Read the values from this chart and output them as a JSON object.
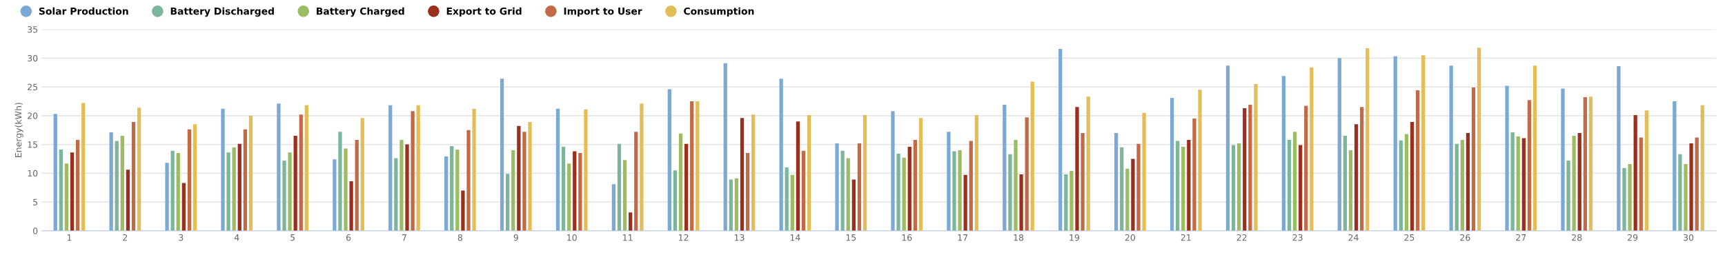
{
  "chart_data": {
    "type": "bar",
    "ylabel": "Energy(kWh)",
    "categories": [
      "1",
      "2",
      "3",
      "4",
      "5",
      "6",
      "7",
      "8",
      "9",
      "10",
      "11",
      "12",
      "13",
      "14",
      "15",
      "16",
      "17",
      "18",
      "19",
      "20",
      "21",
      "22",
      "23",
      "24",
      "25",
      "26",
      "27",
      "28",
      "29",
      "30"
    ],
    "series": [
      {
        "name": "Solar Production",
        "color": "#7aa9d6",
        "values": [
          20.3,
          17.1,
          11.8,
          21.2,
          22.1,
          12.4,
          21.8,
          12.9,
          26.4,
          21.2,
          8.1,
          24.6,
          29.1,
          26.4,
          15.2,
          20.8,
          17.2,
          21.9,
          31.6,
          17.0,
          23.1,
          28.7,
          26.9,
          30.0,
          30.3,
          28.7,
          25.2,
          24.7,
          28.6,
          22.5
        ]
      },
      {
        "name": "Battery Discharged",
        "color": "#7bb59b",
        "values": [
          14.1,
          15.6,
          13.9,
          13.6,
          12.2,
          17.2,
          12.6,
          14.7,
          9.9,
          14.6,
          15.1,
          10.5,
          8.9,
          11.0,
          13.9,
          13.4,
          13.8,
          13.3,
          9.8,
          14.5,
          15.6,
          14.9,
          15.8,
          16.5,
          15.7,
          15.1,
          17.1,
          12.2,
          10.9,
          13.3
        ]
      },
      {
        "name": "Battery Charged",
        "color": "#9cbc63",
        "values": [
          11.7,
          16.5,
          13.5,
          14.5,
          13.6,
          14.3,
          15.8,
          14.1,
          14.0,
          11.7,
          12.3,
          16.9,
          9.1,
          9.7,
          12.6,
          12.7,
          14.0,
          15.8,
          10.4,
          10.8,
          14.6,
          15.2,
          17.2,
          14.0,
          16.8,
          15.8,
          16.4,
          16.5,
          11.6,
          11.6
        ]
      },
      {
        "name": "Export to Grid",
        "color": "#9b2f1e",
        "values": [
          13.6,
          10.6,
          8.3,
          15.1,
          16.5,
          8.6,
          15.0,
          7.0,
          18.2,
          13.8,
          3.2,
          15.1,
          19.6,
          19.0,
          8.9,
          14.6,
          9.7,
          9.8,
          21.5,
          12.5,
          15.8,
          21.3,
          14.9,
          18.5,
          18.9,
          17.0,
          16.1,
          17.0,
          20.1,
          15.2
        ]
      },
      {
        "name": "Import to User",
        "color": "#c26a45",
        "values": [
          15.8,
          18.9,
          17.6,
          17.6,
          20.2,
          15.8,
          20.8,
          17.5,
          17.2,
          13.5,
          17.2,
          22.5,
          13.5,
          13.9,
          15.2,
          15.8,
          15.6,
          19.7,
          17.0,
          15.1,
          19.5,
          21.9,
          21.7,
          21.5,
          24.4,
          24.9,
          22.7,
          23.2,
          16.2,
          16.2
        ]
      },
      {
        "name": "Consumption",
        "color": "#e3bd57",
        "values": [
          22.2,
          21.4,
          18.5,
          20.0,
          21.8,
          19.6,
          21.8,
          21.2,
          18.9,
          21.1,
          22.1,
          22.5,
          20.2,
          20.1,
          20.1,
          19.6,
          20.1,
          25.9,
          23.3,
          20.5,
          24.5,
          25.5,
          28.4,
          31.7,
          30.5,
          31.8,
          28.7,
          23.3,
          20.9,
          21.8
        ]
      }
    ],
    "ylim": [
      0,
      35
    ],
    "yticks": [
      0,
      5,
      10,
      15,
      20,
      25,
      30,
      35
    ],
    "grid": "y",
    "legend": "top left"
  }
}
